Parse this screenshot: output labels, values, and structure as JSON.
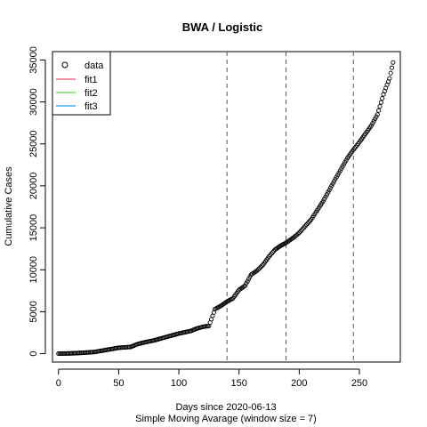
{
  "chart_data": {
    "type": "scatter",
    "title": "BWA / Logistic",
    "xlabel": "Days since 2020-06-13",
    "subtitle": "Simple Moving Avarage (window size = 7)",
    "ylabel": "Cumulative Cases",
    "xlim": [
      -5,
      284
    ],
    "ylim": [
      -1000,
      36000
    ],
    "xticks": [
      0,
      50,
      100,
      150,
      200,
      250
    ],
    "yticks": [
      0,
      5000,
      10000,
      15000,
      20000,
      25000,
      30000,
      35000
    ],
    "vlines": [
      140,
      189,
      245
    ],
    "legend": {
      "position": "top-left",
      "entries": [
        {
          "name": "data",
          "kind": "point",
          "color": "#000000"
        },
        {
          "name": "fit1",
          "kind": "line",
          "color": "#DF536B"
        },
        {
          "name": "fit2",
          "kind": "line",
          "color": "#61D04F"
        },
        {
          "name": "fit3",
          "kind": "line",
          "color": "#2297E6"
        }
      ]
    },
    "series": [
      {
        "kind": "points",
        "color": "#000000",
        "anchors_x": [
          0,
          10,
          20,
          30,
          40,
          50,
          60,
          65,
          70,
          80,
          90,
          100,
          110,
          115,
          120,
          125,
          130,
          135,
          140,
          145,
          150,
          155,
          160,
          165,
          170,
          175,
          180,
          185,
          189,
          195,
          200,
          210,
          220,
          230,
          240,
          245,
          250,
          260,
          265,
          270,
          275,
          278
        ],
        "anchors_y": [
          0,
          30,
          100,
          200,
          450,
          700,
          800,
          1100,
          1300,
          1600,
          2000,
          2400,
          2700,
          3000,
          3200,
          3300,
          5300,
          5700,
          6200,
          6600,
          7600,
          8100,
          9400,
          9900,
          10600,
          11600,
          12400,
          12900,
          13200,
          13800,
          14400,
          16000,
          18200,
          20800,
          23300,
          24300,
          25200,
          27200,
          28500,
          30900,
          32800,
          34700
        ]
      }
    ]
  }
}
